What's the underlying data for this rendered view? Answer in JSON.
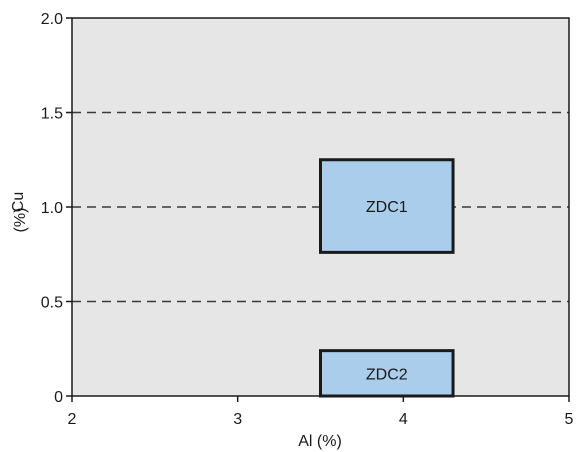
{
  "chart_data": {
    "type": "scatter",
    "title": "",
    "xlabel": "Al (%)",
    "ylabel_main": "Cu",
    "ylabel_unit": "(%)",
    "xlim": [
      2,
      5
    ],
    "ylim": [
      0,
      2
    ],
    "x_ticks": [
      2,
      3,
      4,
      5
    ],
    "x_tick_labels": [
      "2",
      "3",
      "4",
      "5"
    ],
    "y_ticks": [
      0,
      0.5,
      1.0,
      1.5,
      2.0
    ],
    "y_tick_labels": [
      "0",
      "0.5",
      "1.0",
      "1.5",
      "2.0"
    ],
    "gridlines_y": [
      0.5,
      1.0,
      1.5
    ],
    "grid_style": "dashed horizontal",
    "regions": [
      {
        "name": "ZDC1",
        "x": [
          3.5,
          4.3
        ],
        "y": [
          0.76,
          1.25
        ]
      },
      {
        "name": "ZDC2",
        "x": [
          3.5,
          4.3
        ],
        "y": [
          0.0,
          0.24
        ]
      }
    ],
    "colors": {
      "plot_background": "#e6e6e6",
      "region_fill": "#a9cdea",
      "region_stroke": "#1a1a1a",
      "gridline": "#3a3a3a"
    }
  }
}
